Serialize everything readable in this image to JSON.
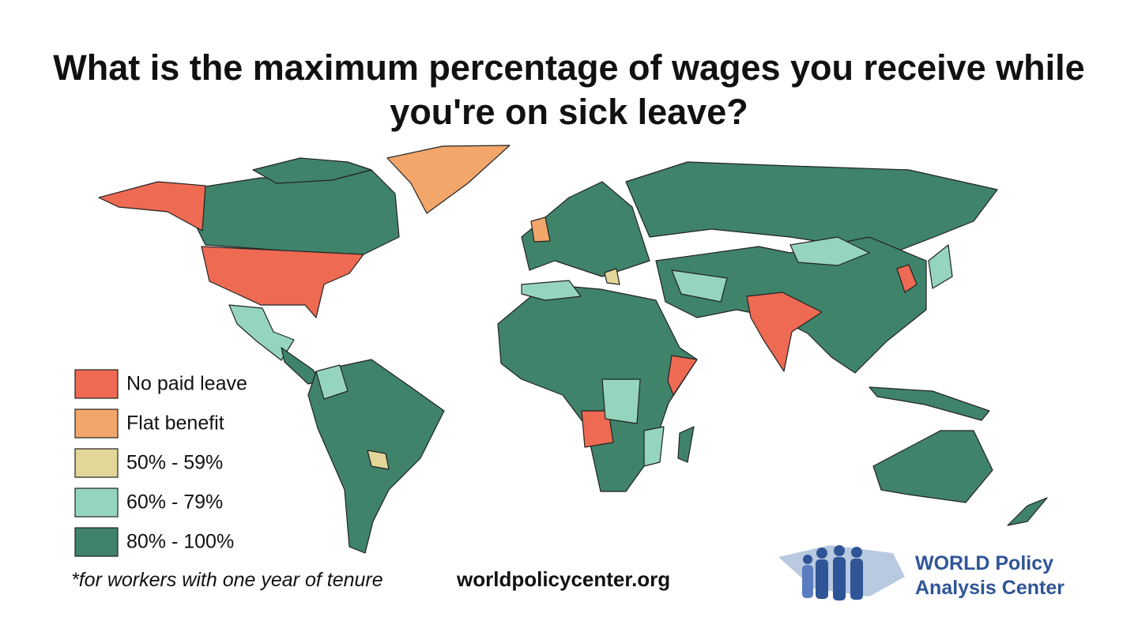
{
  "title": "What is the maximum percentage of wages you receive while you're on sick leave?",
  "legend": [
    {
      "label": "No paid leave",
      "color": "#ee6a52"
    },
    {
      "label": "Flat benefit",
      "color": "#f2a66a"
    },
    {
      "label": "50% - 59%",
      "color": "#e2d798"
    },
    {
      "label": "60% - 79%",
      "color": "#95d5bd"
    },
    {
      "label": "80% - 100%",
      "color": "#3f836a"
    }
  ],
  "footnote": "*for workers with one year of tenure",
  "website": "worldpolicycenter.org",
  "logo": {
    "line1": "WORLD Policy",
    "line2": "Analysis Center"
  }
}
